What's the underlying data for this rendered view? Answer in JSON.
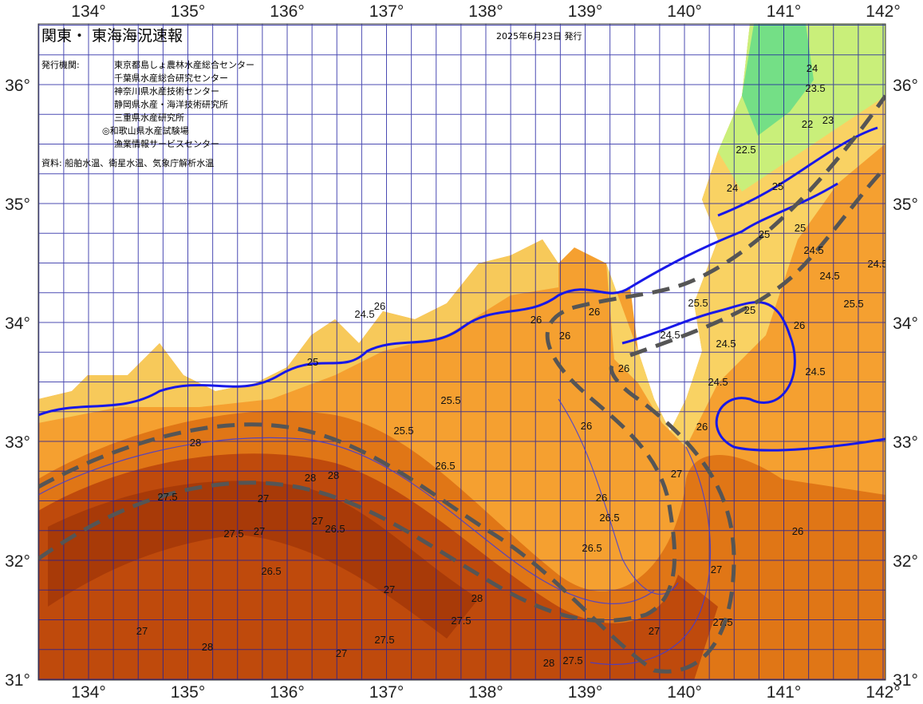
{
  "header": {
    "title": "関東・ 東海海況速報",
    "date": "2025年6月23日 発行",
    "agencies_label": "発行機関:",
    "agencies": [
      "東京都島しょ農林水産総合センター",
      "千葉県水産総合研究センター",
      "神奈川県水産技術センター",
      "静岡県水産・海洋技術研究所",
      "三重県水産研究所",
      "◎和歌山県水産試験場",
      "漁業情報サービスセンター"
    ],
    "source": "資料: 船舶水温、衛星水温、気象庁解析水温"
  },
  "axes": {
    "longitude_labels": [
      "134°",
      "135°",
      "136°",
      "137°",
      "138°",
      "139°",
      "140°",
      "141°",
      "142°"
    ],
    "latitude_labels": [
      "36°",
      "35°",
      "34°",
      "33°",
      "32°",
      "31°"
    ]
  },
  "contour_labels": [
    "24",
    "23.5",
    "22",
    "23",
    "22.5",
    "24",
    "25",
    "25",
    "24.5",
    "24.5",
    "24.5",
    "25",
    "25.5",
    "24.5",
    "25",
    "24.5",
    "24.5",
    "25.5",
    "26",
    "26",
    "26",
    "26",
    "26",
    "25.5",
    "25",
    "26",
    "26.5",
    "27",
    "28",
    "27.5",
    "28",
    "27.5",
    "28",
    "27",
    "26.5",
    "27",
    "28",
    "27.5",
    "27",
    "26.5",
    "27",
    "27",
    "28",
    "27.5",
    "27.5",
    "27",
    "26",
    "26.5",
    "26",
    "27",
    "26.5",
    "28",
    "27.5",
    "27",
    "26",
    "24.5",
    "24.5",
    "26",
    "25.5"
  ]
}
